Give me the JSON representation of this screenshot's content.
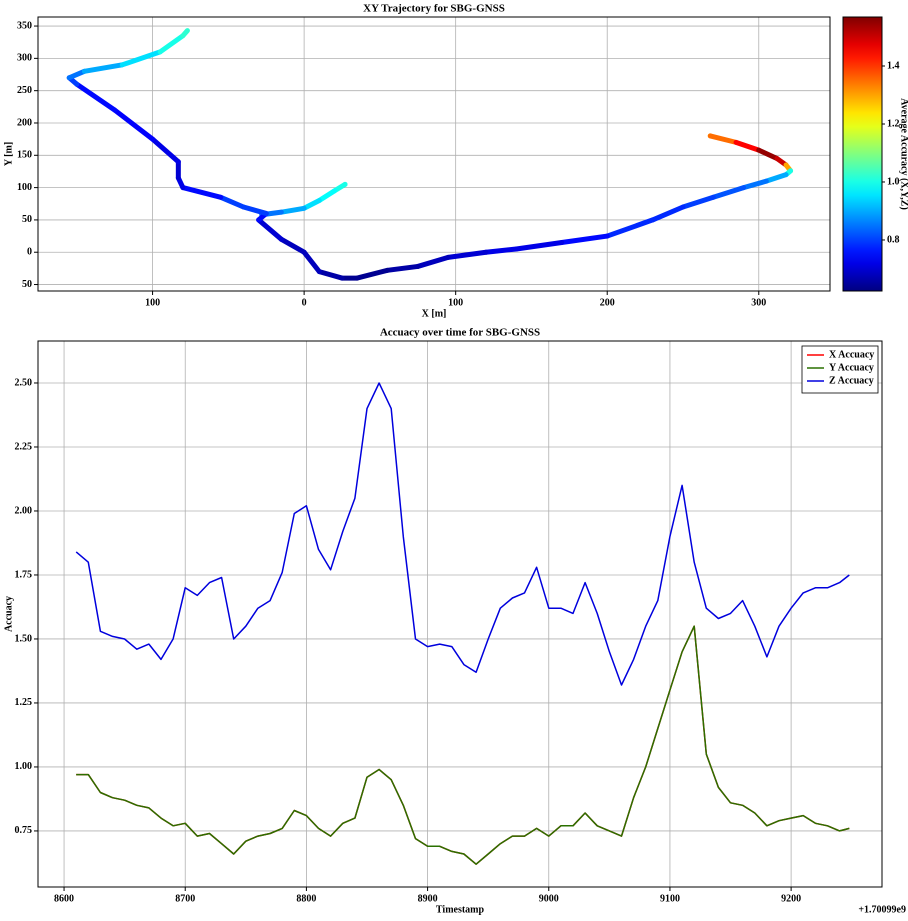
{
  "chart_data": [
    {
      "type": "scatter",
      "title": "XY Trajectory for SBG-GNSS",
      "x_label": "X [m]",
      "y_label": "Y [m]",
      "x": [
        27,
        20,
        10,
        0,
        -15,
        -28,
        null,
        268,
        285,
        300,
        312,
        318,
        321,
        318,
        305,
        290,
        270,
        250,
        230,
        200,
        170,
        140,
        120,
        95,
        75,
        55,
        35,
        25,
        10,
        0,
        -15,
        -30,
        -25,
        -40,
        -55,
        -80,
        -83,
        -83,
        -100,
        -125,
        -150,
        -155,
        -145,
        -120,
        -95,
        -80,
        -77
      ],
      "y": [
        105,
        95,
        80,
        68,
        62,
        58,
        null,
        180,
        170,
        158,
        145,
        135,
        126,
        120,
        110,
        100,
        85,
        70,
        50,
        25,
        15,
        5,
        0,
        -8,
        -22,
        -28,
        -40,
        -40,
        -30,
        0,
        20,
        50,
        60,
        70,
        85,
        100,
        115,
        140,
        175,
        220,
        260,
        270,
        280,
        290,
        310,
        335,
        343
      ],
      "c": [
        1.02,
        1.0,
        0.98,
        0.95,
        0.9,
        0.85,
        null,
        1.25,
        1.35,
        1.45,
        1.55,
        1.5,
        1.3,
        1.0,
        0.9,
        0.85,
        0.82,
        0.8,
        0.78,
        0.78,
        0.75,
        0.72,
        0.72,
        0.7,
        0.68,
        0.66,
        0.64,
        0.64,
        0.66,
        0.68,
        0.68,
        0.7,
        0.75,
        0.8,
        0.8,
        0.75,
        0.72,
        0.7,
        0.72,
        0.74,
        0.75,
        0.8,
        0.85,
        0.9,
        0.95,
        1.0,
        1.02
      ],
      "xlim": [
        -175.6,
        347
      ],
      "ylim": [
        -60,
        364
      ],
      "xticks": [
        {
          "value": -100,
          "label": "100"
        },
        0,
        100,
        200,
        300
      ],
      "yticks": [
        {
          "value": -50,
          "label": "50"
        },
        0,
        50,
        100,
        150,
        200,
        250,
        300,
        350
      ],
      "grid": true,
      "colorbar": {
        "label": "Average Accuracy (X,Y,Z)",
        "colormap": "jet",
        "clim": [
          0.624,
          1.569
        ],
        "ticks": [
          0.8,
          {
            "value": 1.0,
            "label": "1.0"
          },
          1.2,
          1.4
        ]
      }
    },
    {
      "type": "line",
      "title": "Accuacy over time for SBG-GNSS",
      "x_label": "Timestamp",
      "y_label": "Accuacy",
      "x_offset_label": "+1.70099e9",
      "x": [
        8610,
        8620,
        8630,
        8640,
        8650,
        8660,
        8670,
        8680,
        8690,
        8700,
        8710,
        8720,
        8730,
        8740,
        8750,
        8760,
        8770,
        8780,
        8790,
        8800,
        8810,
        8820,
        8830,
        8840,
        8850,
        8860,
        8870,
        8880,
        8890,
        8900,
        8910,
        8920,
        8930,
        8940,
        8950,
        8960,
        8970,
        8980,
        8990,
        9000,
        9010,
        9020,
        9030,
        9040,
        9050,
        9060,
        9070,
        9080,
        9090,
        9100,
        9110,
        9120,
        9130,
        9140,
        9150,
        9160,
        9170,
        9180,
        9190,
        9200,
        9210,
        9220,
        9230,
        9240,
        9248
      ],
      "series": [
        {
          "name": "X Accuacy",
          "color": "#ff0000",
          "values": [
            0.97,
            0.97,
            0.9,
            0.88,
            0.87,
            0.85,
            0.84,
            0.8,
            0.77,
            0.78,
            0.73,
            0.74,
            0.7,
            0.66,
            0.71,
            0.73,
            0.74,
            0.76,
            0.83,
            0.81,
            0.76,
            0.73,
            0.78,
            0.8,
            0.96,
            0.99,
            0.95,
            0.85,
            0.72,
            0.69,
            0.69,
            0.67,
            0.66,
            0.62,
            0.66,
            0.7,
            0.73,
            0.73,
            0.76,
            0.73,
            0.77,
            0.77,
            0.82,
            0.77,
            0.75,
            0.73,
            0.88,
            1.0,
            1.15,
            1.3,
            1.45,
            1.55,
            1.05,
            0.92,
            0.86,
            0.85,
            0.82,
            0.77,
            0.79,
            0.8,
            0.81,
            0.78,
            0.77,
            0.75,
            0.76
          ]
        },
        {
          "name": "Y Accuacy",
          "color": "#2a7000",
          "values": [
            0.97,
            0.97,
            0.9,
            0.88,
            0.87,
            0.85,
            0.84,
            0.8,
            0.77,
            0.78,
            0.73,
            0.74,
            0.7,
            0.66,
            0.71,
            0.73,
            0.74,
            0.76,
            0.83,
            0.81,
            0.76,
            0.73,
            0.78,
            0.8,
            0.96,
            0.99,
            0.95,
            0.85,
            0.72,
            0.69,
            0.69,
            0.67,
            0.66,
            0.62,
            0.66,
            0.7,
            0.73,
            0.73,
            0.76,
            0.73,
            0.77,
            0.77,
            0.82,
            0.77,
            0.75,
            0.73,
            0.88,
            1.0,
            1.15,
            1.3,
            1.45,
            1.55,
            1.05,
            0.92,
            0.86,
            0.85,
            0.82,
            0.77,
            0.79,
            0.8,
            0.81,
            0.78,
            0.77,
            0.75,
            0.76
          ]
        },
        {
          "name": "Z Accuacy",
          "color": "#0000dd",
          "values": [
            1.84,
            1.8,
            1.53,
            1.51,
            1.5,
            1.46,
            1.48,
            1.42,
            1.5,
            1.7,
            1.67,
            1.72,
            1.74,
            1.5,
            1.55,
            1.62,
            1.65,
            1.76,
            1.99,
            2.02,
            1.85,
            1.77,
            1.92,
            2.05,
            2.4,
            2.5,
            2.4,
            1.9,
            1.5,
            1.47,
            1.48,
            1.47,
            1.4,
            1.37,
            1.5,
            1.62,
            1.66,
            1.68,
            1.78,
            1.62,
            1.62,
            1.6,
            1.72,
            1.6,
            1.45,
            1.32,
            1.42,
            1.55,
            1.65,
            1.9,
            2.1,
            1.8,
            1.62,
            1.58,
            1.6,
            1.65,
            1.55,
            1.43,
            1.55,
            1.62,
            1.68,
            1.7,
            1.7,
            1.72,
            1.75
          ]
        }
      ],
      "xlim": [
        8578.5,
        9275
      ],
      "ylim": [
        0.531,
        2.664
      ],
      "xticks": [
        8600,
        8700,
        8800,
        8900,
        9000,
        9100,
        9200
      ],
      "yticks": [
        0.75,
        {
          "value": 1.0,
          "label": "1.00"
        },
        1.25,
        {
          "value": 1.5,
          "label": "1.50"
        },
        1.75,
        {
          "value": 2.0,
          "label": "2.00"
        },
        2.25,
        {
          "value": 2.5,
          "label": "2.50"
        }
      ],
      "grid": true,
      "legend": "upper right"
    }
  ]
}
